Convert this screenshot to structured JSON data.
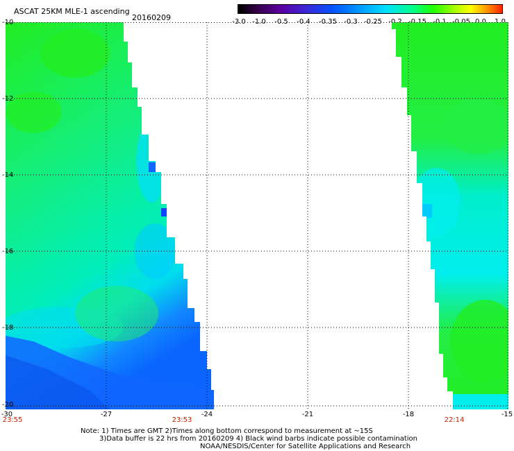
{
  "header": {
    "title": "ASCAT 25KM MLE-1 ascending",
    "date": "20160209"
  },
  "colorbar": {
    "labels": [
      "-3.0",
      "-1.0",
      "-0.5",
      "-0.4",
      "-0.35",
      "-0.3",
      "-0.25",
      "-0.2",
      "-0.15",
      "-0.1",
      "-0.05",
      "0.0",
      "1.0"
    ]
  },
  "map": {
    "lat_labels": [
      "-10",
      "-12",
      "-14",
      "-16",
      "-18",
      "-20"
    ],
    "lon_labels": [
      "-30",
      "-27",
      "-24",
      "-21",
      "-18",
      "-15"
    ],
    "pass_times": [
      "23:55",
      "23:53",
      "22:14"
    ],
    "colors": {
      "field_green": "#22ee22",
      "field_cyan": "#00eeee",
      "field_blue": "#1166ff",
      "time_text": "#c02000"
    }
  },
  "notes": [
    "Note: 1) Times are GMT 2)Times along bottom correspond to measurement at ~15S",
    "3)Data buffer is 22 hrs from 20160209 4) Black wind barbs indicate possible contamination",
    "NOAA/NESDIS/Center for Satellite Applications and Research"
  ]
}
